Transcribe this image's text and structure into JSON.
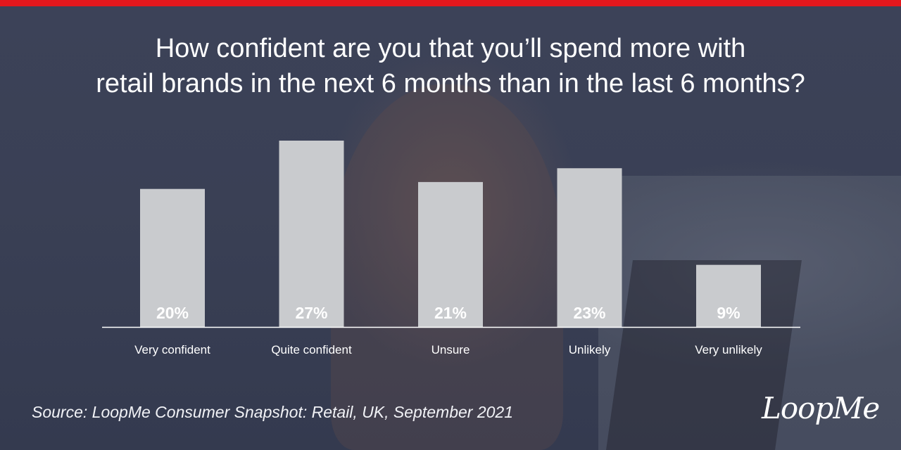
{
  "header": {
    "title_line1": "How confident are you that you’ll spend more with",
    "title_line2": "retail brands in the next 6 months than in the last 6 months?"
  },
  "footer": {
    "source": "Source: LoopMe Consumer Snapshot: Retail, UK, September 2021",
    "logo_text": "LoopMe"
  },
  "colors": {
    "accent_bar": "#e3171d",
    "bar_fill": "#c9cbce",
    "label_text": "#ffffff",
    "axis_line": "#ffffff"
  },
  "chart_data": {
    "type": "bar",
    "title": "How confident are you that you’ll spend more with retail brands in the next 6 months than in the last 6 months?",
    "categories": [
      "Very confident",
      "Quite confident",
      "Unsure",
      "Unlikely",
      "Very unlikely"
    ],
    "values": [
      20,
      27,
      21,
      23,
      9
    ],
    "value_labels": [
      "20%",
      "27%",
      "21%",
      "23%",
      "9%"
    ],
    "unit": "%",
    "ylim": [
      0,
      27
    ],
    "grid": false,
    "legend": "none"
  }
}
